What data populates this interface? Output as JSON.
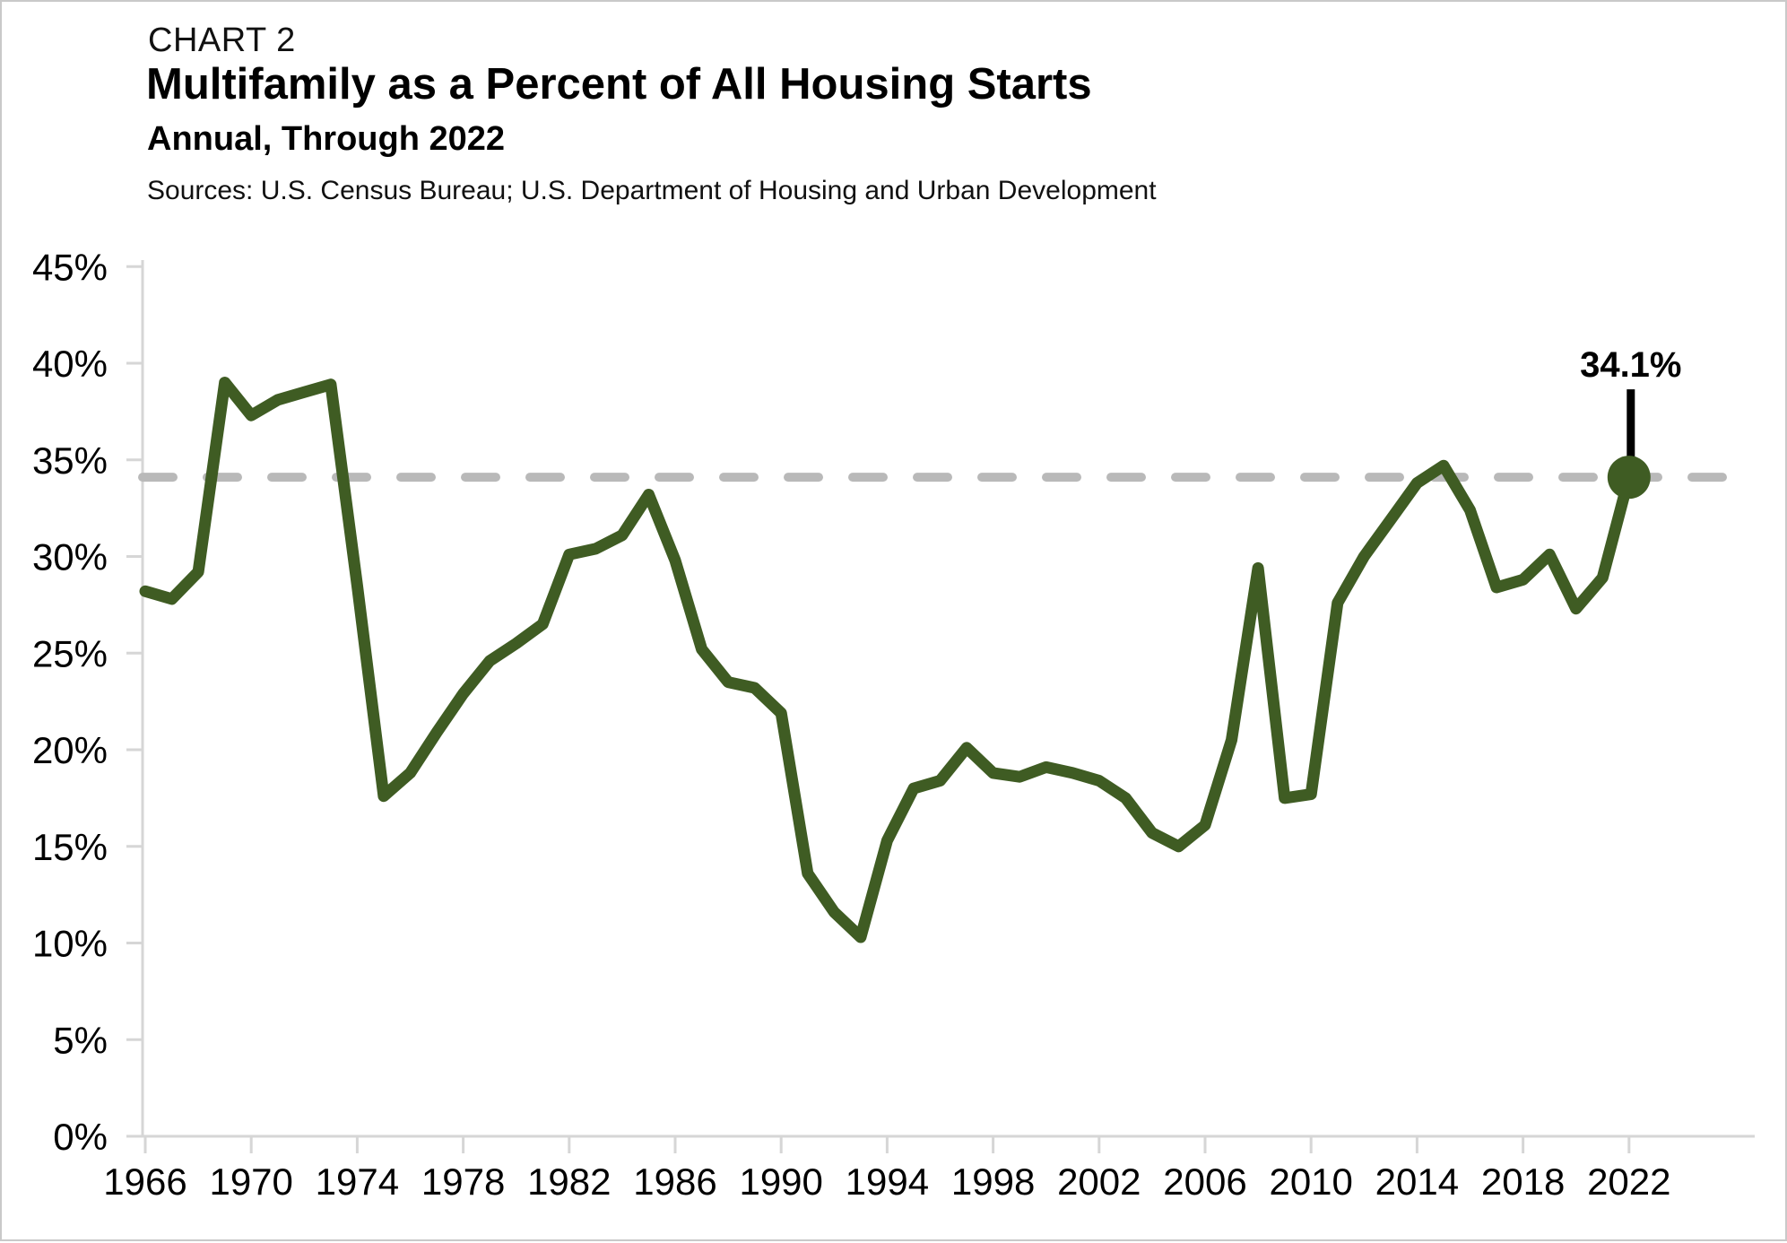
{
  "page": {
    "kicker": "CHART 2",
    "title": "Multifamily as a Percent of All Housing Starts",
    "subtitle": "Annual, Through 2022",
    "sources": "Sources: U.S. Census Bureau; U.S. Department of Housing and Urban Development"
  },
  "chart_data": {
    "type": "line",
    "title": "Multifamily as a Percent of All Housing Starts",
    "subtitle": "Annual, Through 2022",
    "sources": "Sources: U.S. Census Bureau; U.S. Department of Housing and Urban Development",
    "xlabel": "",
    "ylabel": "",
    "ylim": [
      0,
      45
    ],
    "grid": false,
    "legend": "none",
    "x": [
      1966,
      1967,
      1968,
      1969,
      1970,
      1971,
      1972,
      1973,
      1974,
      1975,
      1976,
      1977,
      1978,
      1979,
      1980,
      1981,
      1982,
      1983,
      1984,
      1985,
      1986,
      1987,
      1988,
      1989,
      1990,
      1991,
      1992,
      1993,
      1994,
      1995,
      1996,
      1997,
      1998,
      1999,
      2000,
      2001,
      2002,
      2003,
      2004,
      2005,
      2006,
      2007,
      2008,
      2009,
      2010,
      2011,
      2012,
      2013,
      2014,
      2015,
      2016,
      2017,
      2018,
      2019,
      2020,
      2021,
      2022
    ],
    "series": [
      {
        "name": "Multifamily percent of all housing starts",
        "color": "#3f5c23",
        "values": [
          28.2,
          27.8,
          29.2,
          39.0,
          37.3,
          38.1,
          38.5,
          38.9,
          28.5,
          17.6,
          18.8,
          20.9,
          22.9,
          24.6,
          25.5,
          26.5,
          30.1,
          30.4,
          31.1,
          33.2,
          29.8,
          25.2,
          23.5,
          23.2,
          21.9,
          13.6,
          11.6,
          10.3,
          15.3,
          18.0,
          18.4,
          20.1,
          18.8,
          18.6,
          19.1,
          18.8,
          18.4,
          17.5,
          15.7,
          15.0,
          16.1,
          20.5,
          29.4,
          17.5,
          17.7,
          27.6,
          30.0,
          31.9,
          33.8,
          34.7,
          32.4,
          28.4,
          28.8,
          30.1,
          27.3,
          28.9,
          34.1
        ]
      }
    ],
    "ytick_values": [
      0,
      5,
      10,
      15,
      20,
      25,
      30,
      35,
      40,
      45
    ],
    "ytick_labels": [
      "0%",
      "5%",
      "10%",
      "15%",
      "20%",
      "25%",
      "30%",
      "35%",
      "40%",
      "45%"
    ],
    "xticks": [
      1966,
      1970,
      1974,
      1978,
      1982,
      1986,
      1990,
      1994,
      1998,
      2002,
      2006,
      2010,
      2014,
      2018,
      2022
    ],
    "reference_line": {
      "value": 34.1,
      "style": "dashed",
      "color": "#b9b9b9"
    },
    "endpoint": {
      "year": 2022,
      "value": 34.1,
      "label": "34.1%"
    },
    "colors": {
      "line": "#3f5c23",
      "reference": "#b9b9b9",
      "axis": "#d6d6d6",
      "text": "#000000",
      "callout": "#000000"
    }
  }
}
